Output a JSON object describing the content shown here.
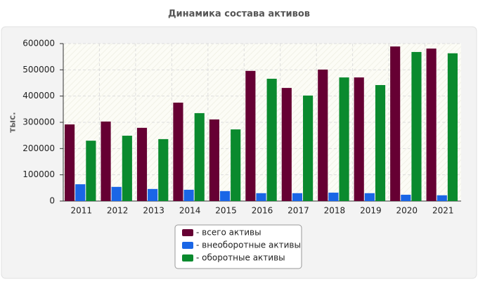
{
  "chart_data": {
    "type": "bar",
    "title": "Динамика состава активов",
    "y_label": "тыс.",
    "categories": [
      "2011",
      "2012",
      "2013",
      "2014",
      "2015",
      "2016",
      "2017",
      "2018",
      "2019",
      "2020",
      "2021"
    ],
    "series": [
      {
        "name": "- всего активы",
        "color": "#660033",
        "values": [
          292000,
          303000,
          279000,
          375000,
          311000,
          496000,
          431000,
          501000,
          471000,
          589000,
          581000
        ]
      },
      {
        "name": "- внеоборотные активы",
        "color": "#1a66e6",
        "values": [
          64000,
          54000,
          46000,
          43000,
          38000,
          30000,
          30000,
          32000,
          30000,
          24000,
          22000
        ]
      },
      {
        "name": "- оборотные активы",
        "color": "#0a8a2e",
        "values": [
          230000,
          249000,
          236000,
          335000,
          273000,
          466000,
          402000,
          471000,
          442000,
          568000,
          563000
        ]
      }
    ],
    "ylim": [
      0,
      600000
    ],
    "yticks": [
      0,
      100000,
      200000,
      300000,
      400000,
      500000,
      600000
    ],
    "grid": true,
    "legend": "bottom"
  }
}
